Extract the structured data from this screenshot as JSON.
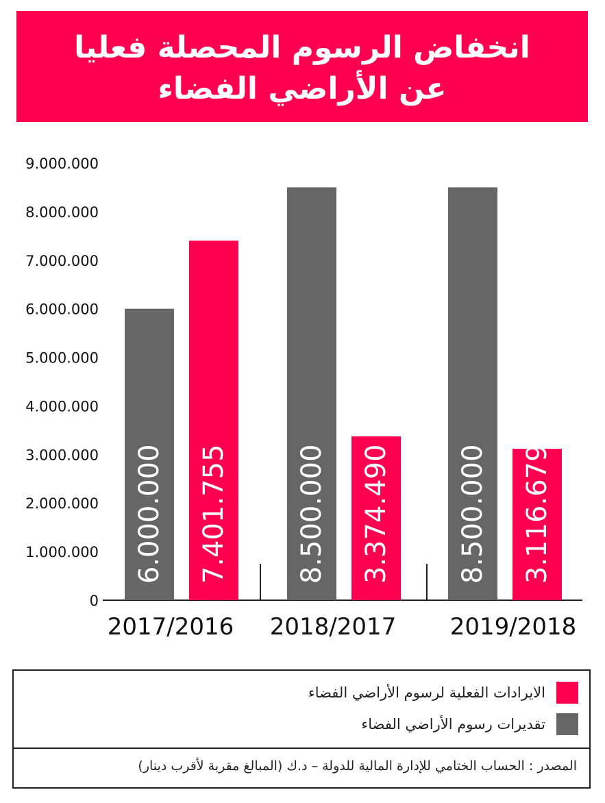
{
  "title": {
    "line1": "انخفاض الرسوم المحصلة فعليا",
    "line2": "عن الأراضي الفضاء"
  },
  "colors": {
    "actual": "#ff0050",
    "estimate": "#666666",
    "axis": "#222222"
  },
  "chart_data": {
    "type": "bar",
    "categories": [
      "2017/2016",
      "2018/2017",
      "2019/2018"
    ],
    "series": [
      {
        "name": "تقديرات رسوم الأراضي الفضاء",
        "color": "#666666",
        "values": [
          6000000,
          8500000,
          8500000
        ],
        "labels": [
          "6.000.000",
          "8.500.000",
          "8.500.000"
        ]
      },
      {
        "name": "الايرادات الفعلية لرسوم الأراضي الفضاء",
        "color": "#ff0050",
        "values": [
          7401755,
          3374490,
          3116679
        ],
        "labels": [
          "7.401.755",
          "3.374.490",
          "3.116.679"
        ]
      }
    ],
    "yticks": [
      "0",
      "1.000.000",
      "2.000.000",
      "3.000.000",
      "4.000.000",
      "5.000.000",
      "6.000.000",
      "7.000.000",
      "8.000.000",
      "9.000.000"
    ],
    "ylim": [
      0,
      9000000
    ],
    "grid": false,
    "legend_position": "bottom"
  },
  "legend": {
    "actual_label": "الايرادات الفعلية لرسوم الأراضي الفضاء",
    "estimate_label": "تقديرات رسوم الأراضي الفضاء"
  },
  "source": "المصدر : الحساب الختامي للإدارة المالية للدولة – د.ك (المبالغ مقربة لأقرب دينار)"
}
